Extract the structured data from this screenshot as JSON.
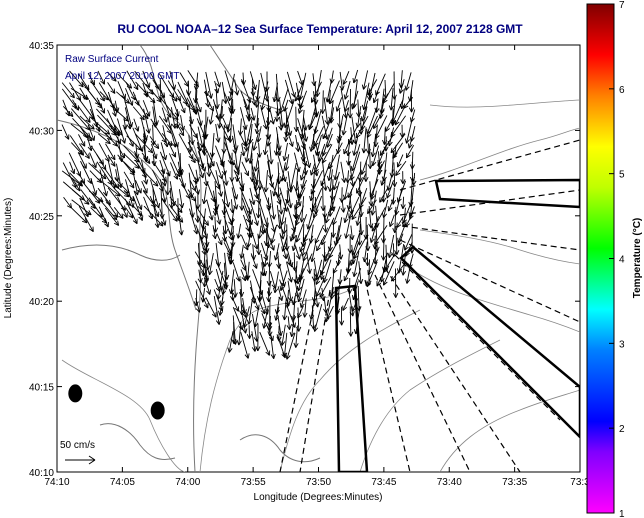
{
  "chart_data": {
    "type": "quiver-map",
    "title": "RU COOL  NOAA–12  Sea Surface Temperature:  April 12, 2007 2128 GMT",
    "xlabel": "Longitude (Degrees:Minutes)",
    "ylabel": "Latitude (Degrees:Minutes)",
    "x_ticks": [
      "74:10",
      "74:05",
      "74:00",
      "73:55",
      "73:50",
      "73:45",
      "73:40",
      "73:35",
      "73:3"
    ],
    "y_ticks": [
      "40:10",
      "40:15",
      "40:20",
      "40:25",
      "40:30",
      "40:35"
    ],
    "xlim_minutes_west": [
      70,
      30
    ],
    "ylim_minutes_north": [
      10,
      35
    ],
    "annotations": [
      "Raw Surface Current",
      "April 12, 2007 20:00 GMT"
    ],
    "scale_arrow_label": "50 cm/s",
    "colorbar": {
      "label": "Temperature (°C)",
      "ticks": [
        "1",
        "2",
        "3",
        "4",
        "5",
        "6",
        "7"
      ],
      "range": [
        1,
        7
      ],
      "colors": [
        "#ff00ff",
        "#0000ff",
        "#00ffff",
        "#00ff00",
        "#ffff00",
        "#ff8000",
        "#ff0000",
        "#800000"
      ]
    },
    "currents": [
      {
        "region": "northwest",
        "direction_deg": 155,
        "speed_cms": 45
      },
      {
        "region": "north-center",
        "direction_deg": 175,
        "speed_cms": 50
      },
      {
        "region": "center",
        "direction_deg": 185,
        "speed_cms": 55
      },
      {
        "region": "east",
        "direction_deg": 195,
        "speed_cms": 35
      }
    ],
    "stations": [
      {
        "lon_min_w": 68.6,
        "lat_min_n": 14.6
      },
      {
        "lon_min_w": 62.3,
        "lat_min_n": 13.6
      }
    ]
  }
}
